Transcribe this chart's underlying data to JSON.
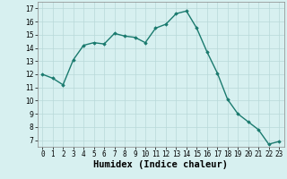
{
  "x": [
    0,
    1,
    2,
    3,
    4,
    5,
    6,
    7,
    8,
    9,
    10,
    11,
    12,
    13,
    14,
    15,
    16,
    17,
    18,
    19,
    20,
    21,
    22,
    23
  ],
  "y": [
    12.0,
    11.7,
    11.2,
    13.1,
    14.2,
    14.4,
    14.3,
    15.1,
    14.9,
    14.8,
    14.4,
    15.5,
    15.8,
    16.6,
    16.8,
    15.5,
    13.7,
    12.1,
    10.1,
    9.0,
    8.4,
    7.8,
    6.7,
    6.9
  ],
  "line_color": "#1a7a6e",
  "marker": "D",
  "marker_size": 1.8,
  "bg_color": "#d7f0f0",
  "grid_color": "#b8d8d8",
  "xlabel": "Humidex (Indice chaleur)",
  "xlabel_fontsize": 7.5,
  "ylim": [
    6.5,
    17.5
  ],
  "xlim": [
    -0.5,
    23.5
  ],
  "yticks": [
    7,
    8,
    9,
    10,
    11,
    12,
    13,
    14,
    15,
    16,
    17
  ],
  "xtick_labels": [
    "0",
    "1",
    "2",
    "3",
    "4",
    "5",
    "6",
    "7",
    "8",
    "9",
    "10",
    "11",
    "12",
    "13",
    "14",
    "15",
    "16",
    "17",
    "18",
    "19",
    "20",
    "21",
    "22",
    "23"
  ],
  "tick_fontsize": 5.5,
  "linewidth": 1.0
}
